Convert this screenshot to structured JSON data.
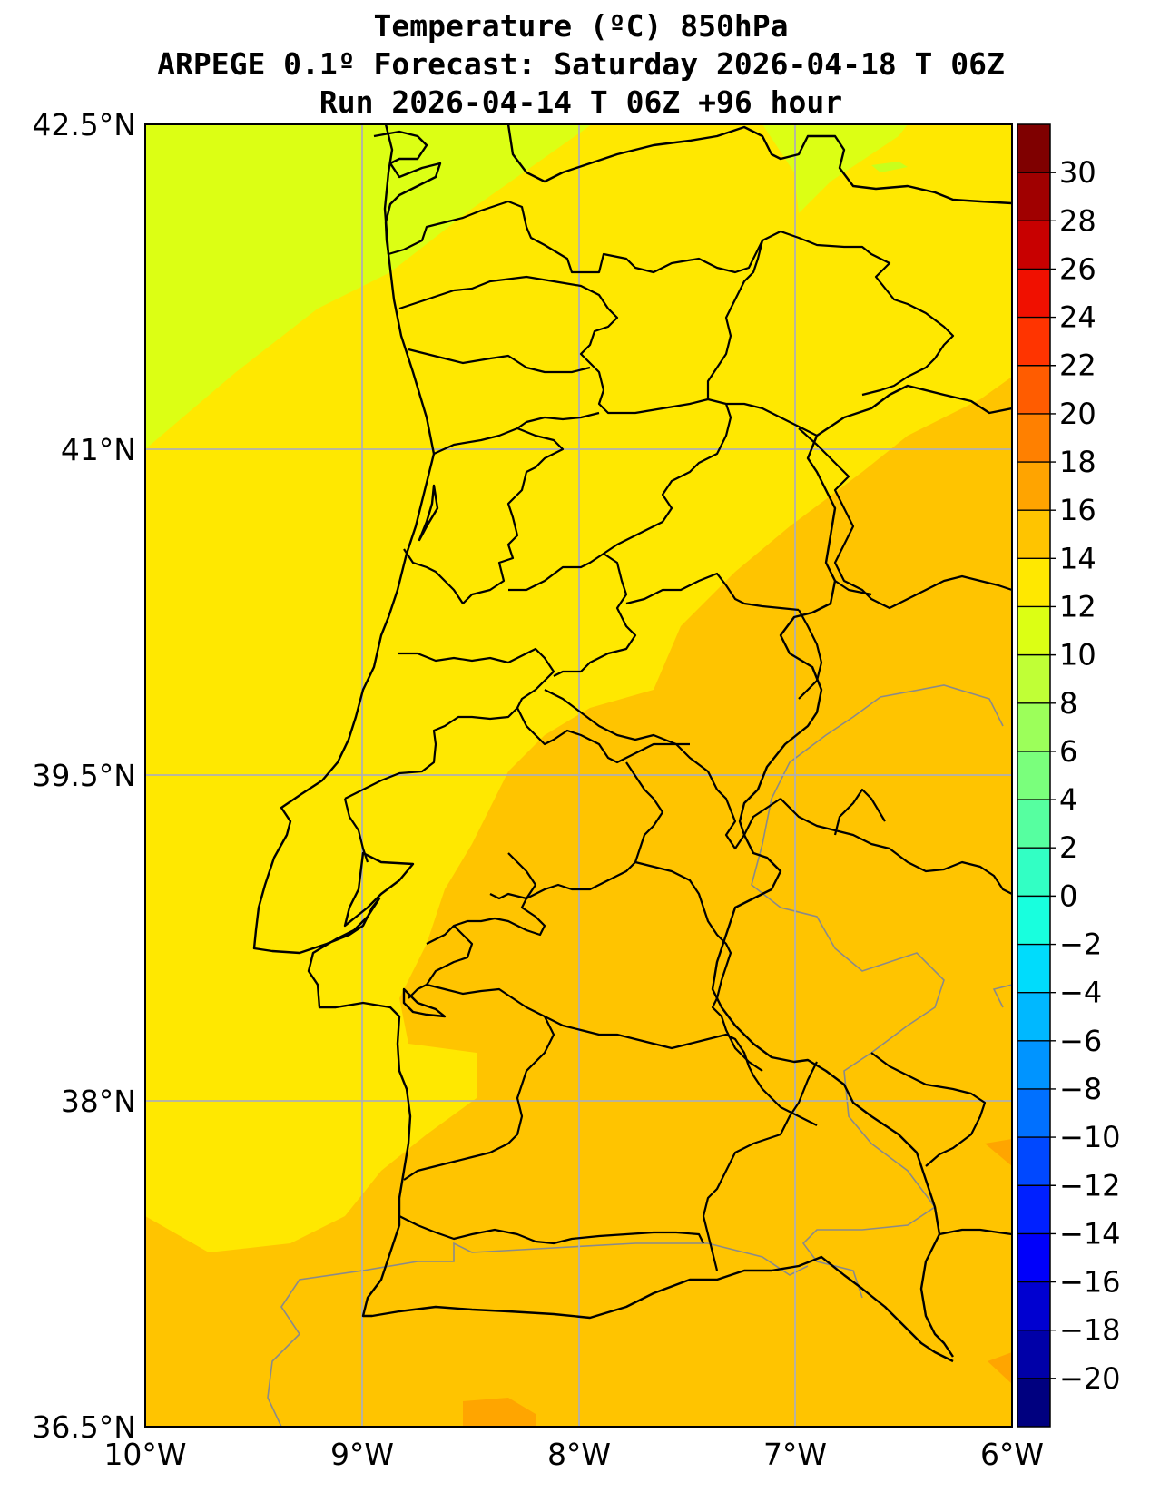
{
  "title": {
    "line1": "Temperature (ºC) 850hPa",
    "line2": "ARPEGE 0.1º Forecast: Saturday 2026-04-18 T 06Z",
    "line3": "Run 2026-04-14 T 06Z +96 hour"
  },
  "map": {
    "lat_labels": [
      "42.5°N",
      "41°N",
      "39.5°N",
      "38°N",
      "36.5°N"
    ],
    "lon_labels": [
      "10°W",
      "9°W",
      "8°W",
      "7°W",
      "6°W"
    ],
    "lat_range": [
      36.5,
      42.5
    ],
    "lon_range": [
      -10,
      -6
    ],
    "grid": true,
    "field_colors": {
      "8_10": "#c8ff1c",
      "10_12": "#dcff14",
      "12_14": "#ffe800",
      "14_16": "#ffc400",
      "16_18": "#ffa500"
    }
  },
  "colorbar": {
    "levels": [
      -22,
      -20,
      -18,
      -16,
      -14,
      -12,
      -10,
      -8,
      -6,
      -4,
      -2,
      0,
      2,
      4,
      6,
      8,
      10,
      12,
      14,
      16,
      18,
      20,
      22,
      24,
      26,
      28,
      30,
      32
    ],
    "labels": [
      "30",
      "28",
      "26",
      "24",
      "22",
      "20",
      "18",
      "16",
      "14",
      "12",
      "10",
      "8",
      "6",
      "4",
      "2",
      "0",
      "−2",
      "−4",
      "−6",
      "−8",
      "−10",
      "−12",
      "−14",
      "−16",
      "−18",
      "−20"
    ],
    "colors": [
      "#00007f",
      "#0000a8",
      "#0000d0",
      "#0000fa",
      "#0020ff",
      "#0048ff",
      "#0070ff",
      "#0094ff",
      "#00b8ff",
      "#00dcfc",
      "#18ffde",
      "#32ffc4",
      "#56ffa0",
      "#7aff7c",
      "#9cff5a",
      "#c0ff36",
      "#dcff14",
      "#ffe800",
      "#ffc400",
      "#ffa400",
      "#ff8000",
      "#ff5c00",
      "#ff3400",
      "#f01000",
      "#c80000",
      "#a00000",
      "#7f0000"
    ]
  }
}
